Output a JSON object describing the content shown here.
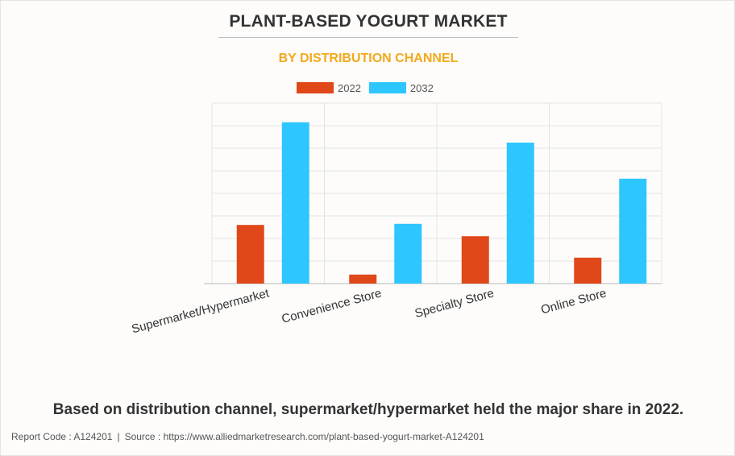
{
  "header": {
    "title": "PLANT-BASED YOGURT MARKET",
    "subtitle": "BY DISTRIBUTION CHANNEL"
  },
  "colors": {
    "series_2022": "#e0481a",
    "series_2032": "#2ec6ff",
    "subtitle": "#f2a91c",
    "grid": "#e3e3e3"
  },
  "chart_data": {
    "type": "bar",
    "categories": [
      "Supermarket/Hypermarket",
      "Convenience Store",
      "Specialty Store",
      "Online Store"
    ],
    "series": [
      {
        "name": "2022",
        "values": [
          2.6,
          0.4,
          2.1,
          1.15
        ]
      },
      {
        "name": "2032",
        "values": [
          7.15,
          2.65,
          6.25,
          4.65
        ]
      }
    ],
    "ylim": [
      0,
      8
    ],
    "grid": true,
    "legend_position": "top-center",
    "y_tick_labels_shown": false
  },
  "caption": "Based on distribution channel, supermarket/hypermarket held the major share in 2022.",
  "footer": {
    "report_code": "Report Code : A124201",
    "separator": "|",
    "source": "Source : https://www.alliedmarketresearch.com/plant-based-yogurt-market-A124201"
  }
}
